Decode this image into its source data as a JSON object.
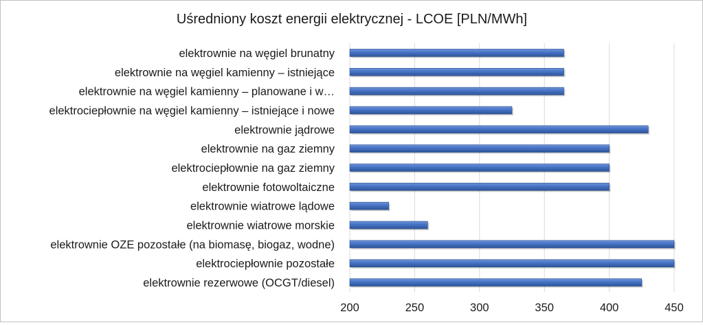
{
  "chart_data": {
    "type": "bar",
    "orientation": "horizontal",
    "title": "Uśredniony koszt energii elektrycznej - LCOE [PLN/MWh]",
    "xlabel": "",
    "ylabel": "",
    "xlim": [
      200,
      450
    ],
    "xticks": [
      "200",
      "250",
      "300",
      "350",
      "400",
      "450"
    ],
    "grid": "vertical",
    "legend": "none",
    "bar_color": "#4472c4",
    "categories": [
      "elektrownie na węgiel brunatny",
      "elektrownie na węgiel kamienny – istniejące",
      "elektrownie na węgiel kamienny – planowane i w…",
      "elektrociepłownie na węgiel kamienny – istniejące i nowe",
      "elektrownie jądrowe",
      "elektrownie na gaz ziemny",
      "elektrociepłownie na gaz ziemny",
      "elektrownie fotowoltaiczne",
      "elektrownie wiatrowe lądowe",
      "elektrownie wiatrowe morskie",
      "elektrownie OZE pozostałe (na biomasę, biogaz, wodne)",
      "elektrociepłownie pozostałe",
      "elektrownie rezerwowe (OCGT/diesel)"
    ],
    "values": [
      365,
      365,
      365,
      325,
      430,
      400,
      400,
      400,
      230,
      260,
      450,
      450,
      425
    ]
  }
}
